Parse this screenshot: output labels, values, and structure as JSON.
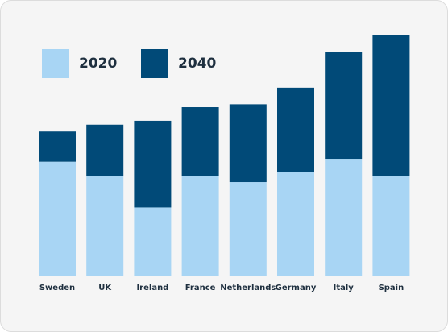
{
  "colors": {
    "background": "#f5f5f5",
    "light": "#a8d5f4",
    "dark": "#014a78",
    "text": "#1e2f3f"
  },
  "legend": {
    "item_2020": "2020",
    "item_2040": "2040"
  },
  "chart_data": {
    "type": "bar",
    "stacked": true,
    "categories": [
      "Sweden",
      "UK",
      "Ireland",
      "France",
      "Netherlands",
      "Germany",
      "Italy",
      "Spain"
    ],
    "series": [
      {
        "name": "2020",
        "color": "#a8d5f4",
        "values": [
          117,
          102,
          70,
          102,
          96,
          106,
          120,
          102
        ]
      },
      {
        "name": "2040",
        "color": "#014a78",
        "values": [
          31,
          53,
          89,
          71,
          80,
          87,
          110,
          145
        ]
      }
    ],
    "title": "",
    "xlabel": "",
    "ylabel": "",
    "ylim": [
      0,
      250
    ],
    "grid": false,
    "legend_position": "top-left"
  }
}
